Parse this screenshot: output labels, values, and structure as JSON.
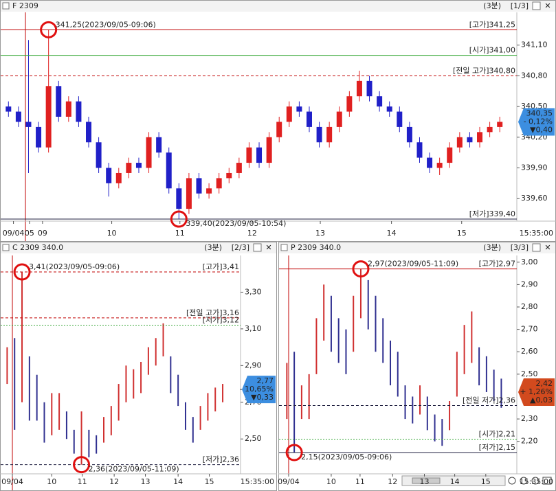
{
  "panels": [
    {
      "type": "candlestick",
      "title": "F 2309",
      "period": "(3분)",
      "page": "[1/3]",
      "end_time": "15:35:00",
      "ylim": [
        339.38,
        341.42
      ],
      "xlim": [
        0,
        51.2
      ],
      "yticks": [
        {
          "value": 341.1,
          "label": "341,10"
        },
        {
          "value": 340.8,
          "label": "340,80"
        },
        {
          "value": 340.5,
          "label": "340,50"
        },
        {
          "value": 340.2,
          "label": "340,20"
        },
        {
          "value": 339.9,
          "label": "339,90"
        },
        {
          "value": 339.6,
          "label": "339,60"
        }
      ],
      "xticks": [
        {
          "value": 1.0,
          "label": "09/04"
        },
        {
          "value": 2.6,
          "label": "05"
        },
        {
          "value": 3.9,
          "label": "09"
        },
        {
          "value": 10.8,
          "label": "10"
        },
        {
          "value": 17.6,
          "label": "11"
        },
        {
          "value": 24.8,
          "label": "12"
        },
        {
          "value": 31.6,
          "label": "13"
        },
        {
          "value": 38.7,
          "label": "14"
        },
        {
          "value": 45.7,
          "label": "15"
        }
      ],
      "levels": [
        {
          "label": "[고가]341,25",
          "value": 341.25,
          "color": "#c00000",
          "style": "solid",
          "note": "341,25(2023/09/05-09:06)"
        },
        {
          "label": "[시가]341,00",
          "value": 341.0,
          "color": "#3aa83a",
          "style": "solid"
        },
        {
          "label": "[전일 고가]340,80",
          "value": 340.8,
          "color": "#c00000",
          "style": "dashed"
        },
        {
          "label": "[저가]339,40",
          "value": 339.4,
          "color": "#202040",
          "style": "solid",
          "note": "339,40(2023/09/05-10:54)"
        }
      ],
      "last": {
        "value": 340.35,
        "label": "340,35"
      },
      "change_pct": "- 0,12%",
      "change": "▼0,40",
      "box_color": "#3c8ee0",
      "open": [
        340.5,
        340.45,
        340.35,
        340.3,
        340.1,
        340.7,
        340.4,
        340.55,
        340.35,
        340.15,
        339.9,
        339.75,
        339.85,
        339.95,
        339.9,
        340.2,
        340.05,
        339.7,
        339.5,
        339.8,
        339.65,
        339.7,
        339.8,
        339.85,
        339.95,
        340.1,
        339.95,
        340.2,
        340.35,
        340.5,
        340.45,
        340.3,
        340.15,
        340.3,
        340.45,
        340.6,
        340.75,
        340.6,
        340.5,
        340.45,
        340.3,
        340.15,
        340.0,
        339.9,
        339.95,
        340.1,
        340.2,
        340.15,
        340.25,
        340.3
      ],
      "high": [
        340.55,
        340.5,
        341.15,
        340.35,
        341.25,
        340.75,
        340.6,
        340.6,
        340.4,
        340.2,
        339.95,
        339.9,
        340.0,
        340.0,
        340.25,
        340.25,
        340.1,
        339.75,
        339.85,
        339.85,
        339.75,
        339.85,
        339.9,
        340.0,
        340.15,
        340.15,
        340.25,
        340.4,
        340.55,
        340.55,
        340.5,
        340.35,
        340.35,
        340.5,
        340.65,
        340.85,
        340.8,
        340.65,
        340.55,
        340.5,
        340.35,
        340.2,
        340.05,
        340.0,
        340.15,
        340.25,
        340.25,
        340.3,
        340.35,
        340.4
      ],
      "low": [
        340.4,
        340.3,
        339.85,
        340.05,
        340.05,
        340.35,
        340.35,
        340.3,
        340.1,
        339.85,
        339.62,
        339.7,
        339.8,
        339.85,
        339.85,
        340.0,
        339.65,
        339.4,
        339.45,
        339.6,
        339.6,
        339.65,
        339.75,
        339.8,
        339.9,
        339.9,
        339.9,
        340.15,
        340.3,
        340.4,
        340.25,
        340.1,
        340.1,
        340.25,
        340.4,
        340.55,
        340.55,
        340.45,
        340.4,
        340.25,
        340.1,
        339.95,
        339.85,
        339.83,
        339.9,
        340.05,
        340.1,
        340.1,
        340.2,
        340.25
      ],
      "close": [
        340.45,
        340.35,
        340.3,
        340.1,
        340.7,
        340.4,
        340.55,
        340.35,
        340.15,
        339.9,
        339.75,
        339.85,
        339.95,
        339.9,
        340.2,
        340.05,
        339.7,
        339.5,
        339.8,
        339.65,
        339.7,
        339.8,
        339.85,
        339.95,
        340.1,
        339.95,
        340.2,
        340.35,
        340.5,
        340.45,
        340.3,
        340.15,
        340.3,
        340.45,
        340.6,
        340.75,
        340.6,
        340.5,
        340.45,
        340.3,
        340.15,
        340.0,
        339.9,
        339.95,
        340.1,
        340.2,
        340.15,
        340.25,
        340.3,
        340.35
      ]
    },
    {
      "type": "range-bar",
      "title": "C 2309 340.0",
      "period": "(3분)",
      "page": "[2/3]",
      "end_time": "15:35:00",
      "ylim": [
        2.31,
        3.5
      ],
      "xlim": [
        0,
        31.9
      ],
      "yticks": [
        {
          "value": 3.3,
          "label": "3,30"
        },
        {
          "value": 3.1,
          "label": "3,10"
        },
        {
          "value": 2.9,
          "label": "2,90"
        },
        {
          "value": 2.7,
          "label": "2,70"
        },
        {
          "value": 2.5,
          "label": "2,50"
        }
      ],
      "xticks": [
        {
          "value": 1.2,
          "label": "09/04"
        },
        {
          "value": 6.5,
          "label": "10"
        },
        {
          "value": 10.6,
          "label": "11"
        },
        {
          "value": 14.9,
          "label": "12"
        },
        {
          "value": 19.1,
          "label": "13"
        },
        {
          "value": 23.5,
          "label": "14"
        },
        {
          "value": 27.7,
          "label": "15"
        }
      ],
      "levels": [
        {
          "label": "[고가]3,41",
          "value": 3.41,
          "color": "#c00000",
          "style": "dashed",
          "note": "3,41(2023/09/05-09:06)"
        },
        {
          "label": "[전일 고가]3,16",
          "value": 3.16,
          "color": "#c00000",
          "style": "dashed"
        },
        {
          "label": "[저가]3,12",
          "value": 3.12,
          "color": "#3aa83a",
          "style": "dotted"
        },
        {
          "label": "[저가]2,36",
          "value": 2.36,
          "color": "#202040",
          "style": "dashed",
          "note": "2,36(2023/09/05-11:09)"
        }
      ],
      "last": {
        "value": 2.77,
        "label": "2,77"
      },
      "change_pct": "- 10,65%",
      "change": "▼0,33",
      "box_color": "#3c8ee0",
      "high": [
        3.0,
        3.05,
        3.41,
        2.95,
        2.85,
        2.7,
        2.75,
        2.75,
        2.65,
        2.55,
        2.65,
        2.55,
        2.52,
        2.62,
        2.68,
        2.8,
        2.9,
        2.88,
        2.92,
        3.0,
        3.05,
        3.13,
        2.95,
        2.85,
        2.7,
        2.62,
        2.68,
        2.75,
        2.78,
        2.8
      ],
      "low": [
        2.8,
        2.55,
        2.7,
        2.6,
        2.6,
        2.48,
        2.52,
        2.55,
        2.5,
        2.42,
        2.36,
        2.4,
        2.42,
        2.48,
        2.52,
        2.6,
        2.7,
        2.72,
        2.75,
        2.85,
        2.9,
        2.95,
        2.75,
        2.68,
        2.55,
        2.48,
        2.55,
        2.6,
        2.65,
        2.7
      ]
    },
    {
      "type": "range-bar",
      "title": "P 2309 340.0",
      "period": "(3분)",
      "page": "[3/3]",
      "end_time": "15:35:00",
      "ylim": [
        2.055,
        3.03
      ],
      "xlim": [
        0,
        31.6
      ],
      "yticks": [
        {
          "value": 3.0,
          "label": "3,00"
        },
        {
          "value": 2.9,
          "label": "2,90"
        },
        {
          "value": 2.8,
          "label": "2,80"
        },
        {
          "value": 2.7,
          "label": "2,70"
        },
        {
          "value": 2.6,
          "label": "2,60"
        },
        {
          "value": 2.5,
          "label": "2,50"
        },
        {
          "value": 2.3,
          "label": "2,30"
        },
        {
          "value": 2.2,
          "label": "2,20"
        }
      ],
      "xticks": [
        {
          "value": 0.74,
          "label": "09/04"
        },
        {
          "value": 6.5,
          "label": "10"
        },
        {
          "value": 10.4,
          "label": "11"
        },
        {
          "value": 14.8,
          "label": "12"
        },
        {
          "value": 19.1,
          "label": "13"
        },
        {
          "value": 23.2,
          "label": "14"
        },
        {
          "value": 27.4,
          "label": "15"
        }
      ],
      "levels": [
        {
          "label": "[고가]2,97",
          "value": 2.97,
          "color": "#c00000",
          "style": "solid",
          "note": "2,97(2023/09/05-11:09)"
        },
        {
          "label": "[전일 저가]2,36",
          "value": 2.36,
          "color": "#202040",
          "style": "dashed"
        },
        {
          "label": "[시가]2,21",
          "value": 2.21,
          "color": "#3aa83a",
          "style": "dotted"
        },
        {
          "label": "[저가]2,15",
          "value": 2.15,
          "color": "#202040",
          "style": "solid",
          "note": "2,15(2023/09/05-09:06)"
        }
      ],
      "last": {
        "value": 2.42,
        "label": "2,42"
      },
      "change_pct": "+ 1,26%",
      "change": "▲0,03",
      "box_color": "#d24a1e",
      "high": [
        2.55,
        2.6,
        2.45,
        2.5,
        2.75,
        2.9,
        2.85,
        2.75,
        2.7,
        2.85,
        2.97,
        2.92,
        2.85,
        2.75,
        2.65,
        2.6,
        2.45,
        2.4,
        2.45,
        2.4,
        2.32,
        2.3,
        2.38,
        2.6,
        2.72,
        2.78,
        2.62,
        2.58,
        2.52,
        2.48
      ],
      "low": [
        2.3,
        2.15,
        2.3,
        2.3,
        2.5,
        2.65,
        2.6,
        2.55,
        2.5,
        2.6,
        2.75,
        2.7,
        2.6,
        2.55,
        2.45,
        2.4,
        2.3,
        2.28,
        2.32,
        2.25,
        2.2,
        2.18,
        2.25,
        2.4,
        2.5,
        2.55,
        2.45,
        2.42,
        2.38,
        2.35
      ]
    }
  ]
}
